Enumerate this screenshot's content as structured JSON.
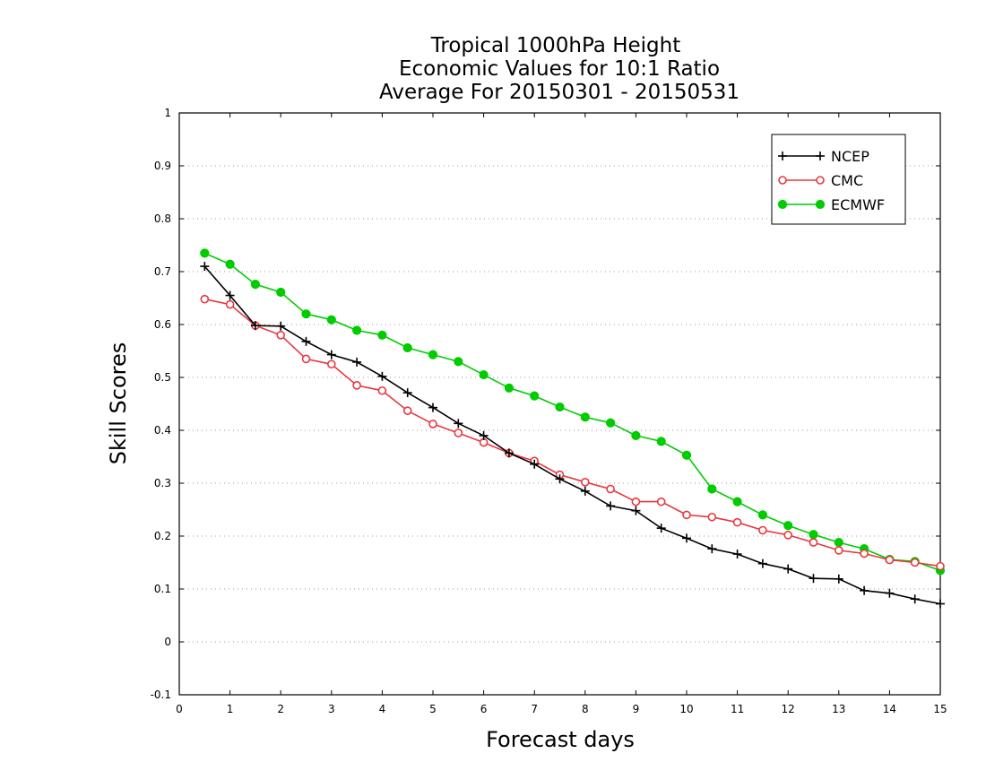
{
  "chart_data": {
    "type": "line",
    "title": [
      "Tropical 1000hPa Height",
      "Economic Values for 10:1 Ratio",
      "Average For 20150301 - 20150531"
    ],
    "xlabel": "Forecast days",
    "ylabel": "Skill Scores",
    "xlim": [
      0,
      15
    ],
    "ylim": [
      -0.1,
      1
    ],
    "xticks": [
      "0",
      "1",
      "2",
      "3",
      "4",
      "5",
      "6",
      "7",
      "8",
      "9",
      "10",
      "11",
      "12",
      "13",
      "14",
      "15"
    ],
    "yticks": [
      "-0.1",
      "0",
      "0.1",
      "0.2",
      "0.3",
      "0.4",
      "0.5",
      "0.6",
      "0.7",
      "0.8",
      "0.9",
      "1"
    ],
    "grid": "horizontal dotted",
    "legend_position": "top-right",
    "x": [
      0.5,
      1,
      1.5,
      2,
      2.5,
      3,
      3.5,
      4,
      4.5,
      5,
      5.5,
      6,
      6.5,
      7,
      7.5,
      8,
      8.5,
      9,
      9.5,
      10,
      10.5,
      11,
      11.5,
      12,
      12.5,
      13,
      13.5,
      14,
      14.5,
      15
    ],
    "series": [
      {
        "name": "NCEP",
        "color": "#000000",
        "marker": "plus",
        "values": [
          0.71,
          0.655,
          0.598,
          0.597,
          0.568,
          0.543,
          0.529,
          0.502,
          0.471,
          0.443,
          0.413,
          0.39,
          0.357,
          0.336,
          0.308,
          0.285,
          0.257,
          0.248,
          0.215,
          0.196,
          0.176,
          0.166,
          0.148,
          0.138,
          0.12,
          0.119,
          0.097,
          0.092,
          0.081,
          0.072
        ]
      },
      {
        "name": "CMC",
        "color": "#e8383d",
        "marker": "open-circle",
        "values": [
          0.648,
          0.638,
          0.598,
          0.58,
          0.535,
          0.525,
          0.485,
          0.475,
          0.437,
          0.412,
          0.395,
          0.377,
          0.357,
          0.342,
          0.316,
          0.302,
          0.289,
          0.265,
          0.265,
          0.24,
          0.236,
          0.226,
          0.211,
          0.202,
          0.188,
          0.173,
          0.167,
          0.155,
          0.15,
          0.143
        ]
      },
      {
        "name": "ECMWF",
        "color": "#00cc00",
        "marker": "filled-circle",
        "values": [
          0.735,
          0.714,
          0.676,
          0.661,
          0.62,
          0.609,
          0.589,
          0.58,
          0.556,
          0.543,
          0.53,
          0.505,
          0.48,
          0.465,
          0.444,
          0.425,
          0.414,
          0.39,
          0.379,
          0.353,
          0.289,
          0.265,
          0.24,
          0.22,
          0.203,
          0.188,
          0.176,
          0.156,
          0.152,
          0.135
        ]
      }
    ]
  }
}
